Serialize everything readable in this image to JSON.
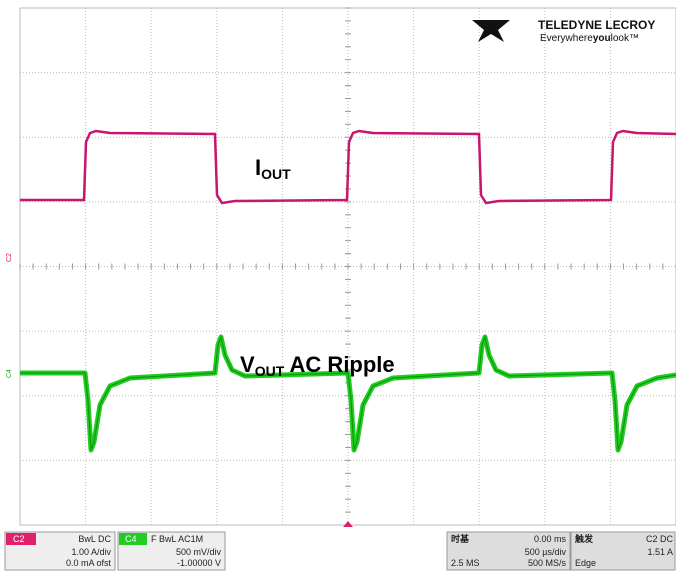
{
  "logo": {
    "brand": "TELEDYNE LECROY",
    "tagline_pre": "Everywhere",
    "tagline_bold": "you",
    "tagline_post": "look™"
  },
  "labels": {
    "iout_main": "I",
    "iout_sub": "OUT",
    "vout_main": "V",
    "vout_sub": "OUT",
    "vout_rest": " AC Ripple"
  },
  "markers": {
    "c2": "C2",
    "c4": "C4"
  },
  "status": {
    "ch2": {
      "tag": "C2",
      "coupling": "BwL DC",
      "scale": "1.00 A/div",
      "offset": "0.0 mA ofst"
    },
    "ch4": {
      "tag": "C4",
      "coupling": "F BwL AC1M",
      "scale": "500 mV/div",
      "offset": "-1.00000 V"
    },
    "timebase": {
      "title": "时基",
      "delay": "0.00 ms",
      "scale": "500 µs/div",
      "samples": "2.5 MS",
      "rate": "500 MS/s"
    },
    "trigger": {
      "title": "触发",
      "source": "C2 DC",
      "level": "1.51 A",
      "mode": "Edge"
    }
  }
}
